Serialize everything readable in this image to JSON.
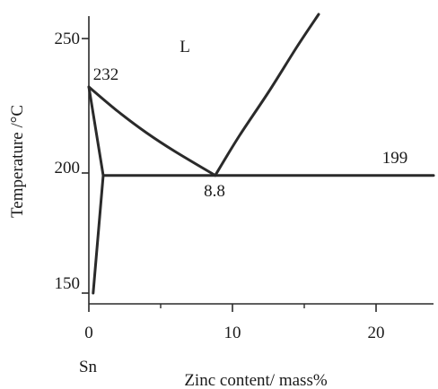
{
  "chart_data": {
    "type": "line",
    "title": "",
    "xlabel": "Zinc content/ mass%",
    "ylabel": "Temperature /°C",
    "xlim": [
      0,
      24
    ],
    "ylim": [
      140,
      265
    ],
    "x_ticks": [
      "0",
      "10",
      "20"
    ],
    "y_ticks": [
      "150",
      "200",
      "250"
    ],
    "corner_label": "Sn",
    "region_labels": [
      "L"
    ],
    "annotations": [
      "232",
      "8.8",
      "199"
    ],
    "grid": false,
    "series": [
      {
        "values": [
          [
            0,
            232
          ],
          [
            2,
            223
          ],
          [
            4,
            215
          ],
          [
            6,
            208
          ],
          [
            8.8,
            199
          ]
        ]
      },
      {
        "values": [
          [
            8.8,
            199
          ],
          [
            10.5,
            214
          ],
          [
            12.5,
            230
          ],
          [
            14.5,
            247
          ],
          [
            16,
            259
          ]
        ]
      },
      {
        "values": [
          [
            1,
            199
          ],
          [
            24,
            199
          ]
        ]
      },
      {
        "values": [
          [
            0,
            232
          ],
          [
            1,
            199
          ],
          [
            0.3,
            150
          ]
        ]
      }
    ]
  }
}
